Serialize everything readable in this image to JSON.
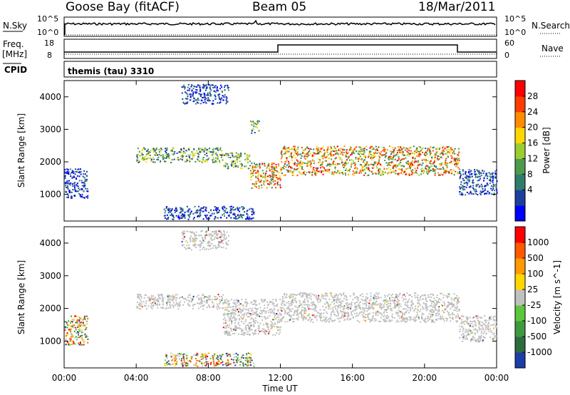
{
  "header": {
    "station": "Goose Bay (fitACF)",
    "beam": "Beam 05",
    "date": "18/Mar/2011"
  },
  "summary_panel": {
    "nsky_label": "N.Sky",
    "nsky_ticks": [
      "10^5",
      "10^0"
    ],
    "nsearch_label": "N.Search",
    "nsearch_ticks": [
      "10^5",
      "10^0"
    ],
    "freq_label": "Freq.",
    "freq_unit": "[MHz]",
    "freq_ticks": [
      "18",
      "8"
    ],
    "nave_label": "Nave",
    "nave_ticks": [
      "60",
      "0"
    ],
    "cpid_label": "CPID",
    "cpid_value": "themis (tau) 3310"
  },
  "chart_data": [
    {
      "type": "heatmap",
      "name": "power",
      "ylabel": "Slant Range [km]",
      "yticks": [
        "4000",
        "3000",
        "2000",
        "1000"
      ],
      "ylim": [
        180,
        4500
      ],
      "colorbar_label": "Power [dB]",
      "colorbar_ticks": [
        "28",
        "24",
        "20",
        "16",
        "12",
        "8",
        "4"
      ],
      "colorbar_colors": [
        "#0000ff",
        "#1e3f9e",
        "#2e7d6b",
        "#4c9b4c",
        "#9acd32",
        "#ffd700",
        "#ff8c00",
        "#ff3c00",
        "#ff0000"
      ],
      "xlim_hours": [
        0,
        24
      ],
      "echo_regions": [
        {
          "from_hour": 0.0,
          "to_hour": 1.3,
          "range_km": [
            900,
            1800
          ],
          "level": "low"
        },
        {
          "from_hour": 4.0,
          "to_hour": 8.8,
          "range_km": [
            2000,
            2450
          ],
          "level": "medium"
        },
        {
          "from_hour": 6.5,
          "to_hour": 9.1,
          "range_km": [
            3800,
            4400
          ],
          "level": "low"
        },
        {
          "from_hour": 8.8,
          "to_hour": 10.3,
          "range_km": [
            1800,
            2300
          ],
          "level": "medium"
        },
        {
          "from_hour": 10.3,
          "to_hour": 12.0,
          "range_km": [
            1200,
            2000
          ],
          "level": "high"
        },
        {
          "from_hour": 10.3,
          "to_hour": 10.8,
          "range_km": [
            2900,
            3300
          ],
          "level": "medium"
        },
        {
          "from_hour": 12.0,
          "to_hour": 21.9,
          "range_km": [
            1600,
            2500
          ],
          "level": "high"
        },
        {
          "from_hour": 21.9,
          "to_hour": 24.0,
          "range_km": [
            1000,
            1800
          ],
          "level": "low"
        },
        {
          "from_hour": 5.5,
          "to_hour": 10.5,
          "range_km": [
            250,
            650
          ],
          "level": "low"
        }
      ]
    },
    {
      "type": "heatmap",
      "name": "velocity",
      "ylabel": "Slant Range [km]",
      "yticks": [
        "4000",
        "3000",
        "2000",
        "1000"
      ],
      "ylim": [
        180,
        4500
      ],
      "colorbar_label": "Velocity [m s^-1]",
      "colorbar_ticks": [
        "1000",
        "500",
        "100",
        "25",
        "-25",
        "-100",
        "-500",
        "-1000"
      ],
      "colorbar_colors": [
        "#1c3ea8",
        "#2e6b3f",
        "#3e9a3e",
        "#5cc63c",
        "#c0c0c0",
        "#ffd700",
        "#ff9a00",
        "#ff5a00",
        "#ff0000"
      ],
      "xlim_hours": [
        0,
        24
      ],
      "echo_regions": [
        {
          "from_hour": 0.0,
          "to_hour": 1.3,
          "range_km": [
            900,
            1800
          ],
          "level": "mixed"
        },
        {
          "from_hour": 4.0,
          "to_hour": 8.8,
          "range_km": [
            2000,
            2450
          ],
          "level": "ground"
        },
        {
          "from_hour": 6.5,
          "to_hour": 9.1,
          "range_km": [
            3800,
            4400
          ],
          "level": "ground"
        },
        {
          "from_hour": 8.8,
          "to_hour": 12.0,
          "range_km": [
            1200,
            2300
          ],
          "level": "ground"
        },
        {
          "from_hour": 12.0,
          "to_hour": 21.9,
          "range_km": [
            1600,
            2500
          ],
          "level": "ground"
        },
        {
          "from_hour": 21.9,
          "to_hour": 24.0,
          "range_km": [
            1000,
            1800
          ],
          "level": "ground"
        },
        {
          "from_hour": 5.5,
          "to_hour": 10.5,
          "range_km": [
            250,
            650
          ],
          "level": "mixed"
        }
      ]
    }
  ],
  "x_axis": {
    "label": "Time UT",
    "ticks": [
      "00:00",
      "04:00",
      "08:00",
      "12:00",
      "16:00",
      "20:00",
      "00:00"
    ]
  }
}
